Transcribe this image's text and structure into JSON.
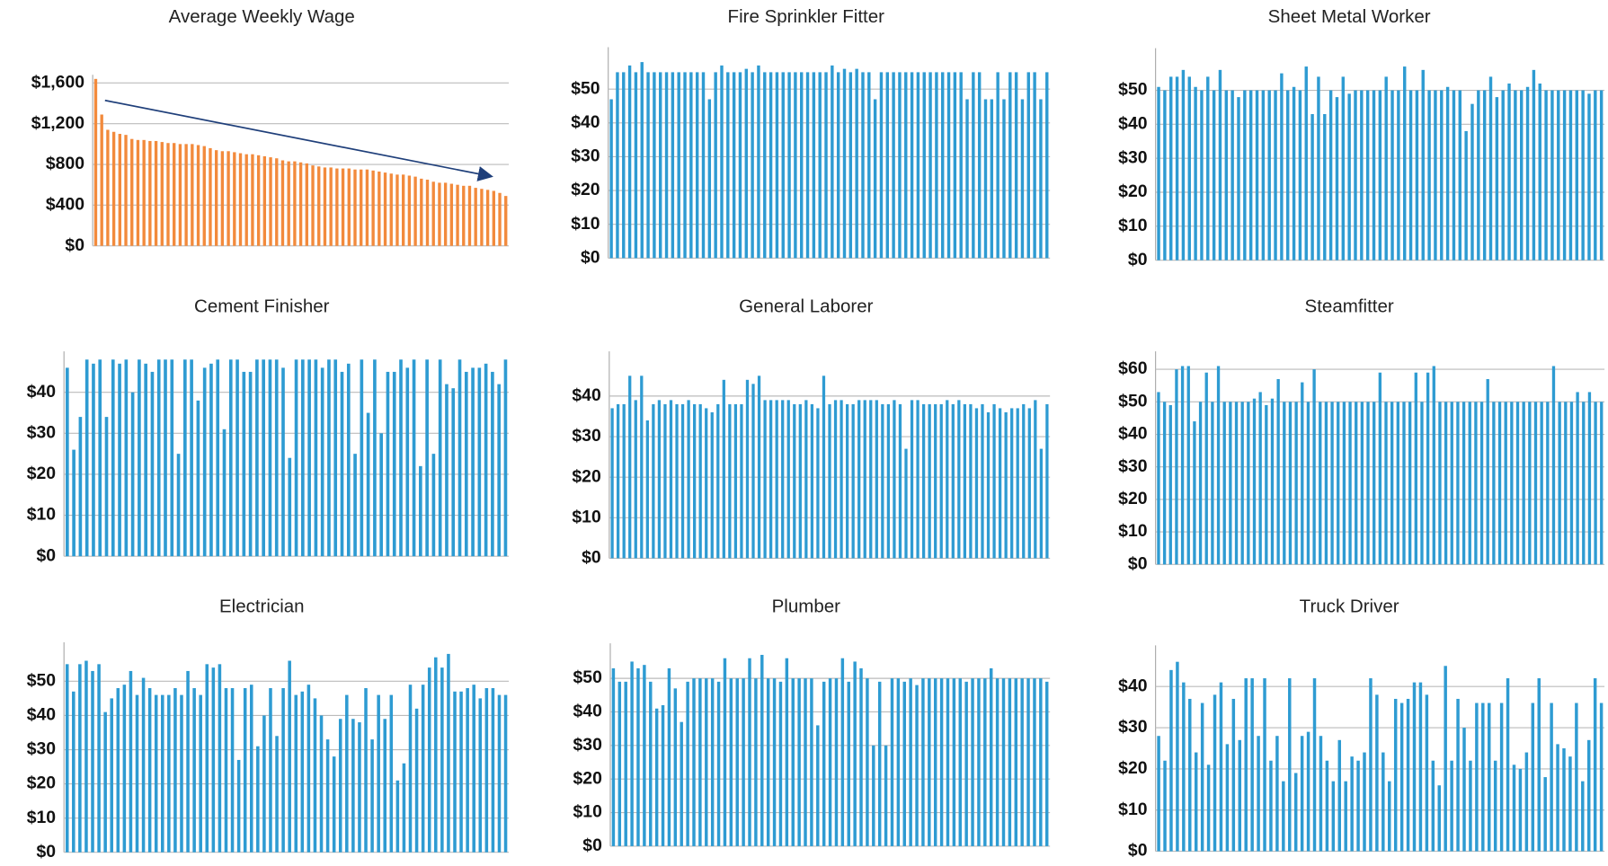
{
  "chart_data": [
    {
      "type": "bar",
      "title": "Average Weekly Wage",
      "color": "#f28a3c",
      "ylim": [
        0,
        1600
      ],
      "yticks": [
        {
          "value": 0,
          "label": "$0"
        },
        {
          "value": 400,
          "label": "$400"
        },
        {
          "value": 800,
          "label": "$800"
        },
        {
          "value": 1200,
          "label": "$1,200"
        },
        {
          "value": 1600,
          "label": "$1,600"
        }
      ],
      "values": [
        1640,
        1290,
        1140,
        1120,
        1100,
        1090,
        1050,
        1040,
        1040,
        1030,
        1030,
        1020,
        1010,
        1010,
        1000,
        1000,
        1000,
        990,
        980,
        960,
        940,
        930,
        930,
        920,
        910,
        900,
        900,
        890,
        880,
        870,
        860,
        840,
        830,
        830,
        820,
        810,
        790,
        780,
        770,
        770,
        760,
        760,
        760,
        750,
        750,
        750,
        740,
        730,
        720,
        710,
        700,
        700,
        690,
        680,
        660,
        650,
        630,
        620,
        620,
        610,
        600,
        590,
        590,
        570,
        560,
        550,
        540,
        520,
        490
      ]
    },
    {
      "type": "bar",
      "title": "Fire Sprinkler Fitter",
      "color": "#2e9bd2",
      "ylim": [
        0,
        60
      ],
      "yticks": [
        {
          "value": 0,
          "label": "$0"
        },
        {
          "value": 10,
          "label": "$10"
        },
        {
          "value": 20,
          "label": "$20"
        },
        {
          "value": 30,
          "label": "$30"
        },
        {
          "value": 40,
          "label": "$40"
        },
        {
          "value": 50,
          "label": "$50"
        }
      ],
      "values": [
        47,
        55,
        55,
        57,
        55,
        58,
        55,
        55,
        55,
        55,
        55,
        55,
        55,
        55,
        55,
        55,
        47,
        55,
        57,
        55,
        55,
        55,
        56,
        55,
        57,
        55,
        55,
        55,
        55,
        55,
        55,
        55,
        55,
        55,
        55,
        55,
        57,
        55,
        56,
        55,
        56,
        55,
        55,
        47,
        55,
        55,
        55,
        55,
        55,
        55,
        55,
        55,
        55,
        55,
        55,
        55,
        55,
        55,
        47,
        55,
        55,
        47,
        47,
        55,
        47,
        55,
        55,
        47,
        55,
        55,
        47,
        55
      ]
    },
    {
      "type": "bar",
      "title": "Sheet Metal Worker",
      "color": "#2e9bd2",
      "ylim": [
        0,
        60
      ],
      "yticks": [
        {
          "value": 0,
          "label": "$0"
        },
        {
          "value": 10,
          "label": "$10"
        },
        {
          "value": 20,
          "label": "$20"
        },
        {
          "value": 30,
          "label": "$30"
        },
        {
          "value": 40,
          "label": "$40"
        },
        {
          "value": 50,
          "label": "$50"
        }
      ],
      "values": [
        51,
        50,
        54,
        54,
        56,
        54,
        51,
        50,
        54,
        50,
        56,
        50,
        50,
        48,
        50,
        50,
        50,
        50,
        50,
        50,
        55,
        50,
        51,
        50,
        57,
        43,
        54,
        43,
        50,
        48,
        54,
        49,
        50,
        50,
        50,
        50,
        50,
        54,
        50,
        50,
        57,
        50,
        50,
        56,
        50,
        50,
        50,
        51,
        50,
        50,
        38,
        46,
        50,
        50,
        54,
        48,
        50,
        52,
        50,
        50,
        51,
        56,
        52,
        50,
        50,
        50,
        50,
        50,
        50,
        50,
        49,
        50,
        50
      ]
    },
    {
      "type": "bar",
      "title": "Cement Finisher",
      "color": "#2e9bd2",
      "ylim": [
        0,
        48
      ],
      "yticks": [
        {
          "value": 0,
          "label": "$0"
        },
        {
          "value": 10,
          "label": "$10"
        },
        {
          "value": 20,
          "label": "$20"
        },
        {
          "value": 30,
          "label": "$30"
        },
        {
          "value": 40,
          "label": "$40"
        }
      ],
      "values": [
        46,
        26,
        34,
        48,
        47,
        48,
        34,
        48,
        47,
        48,
        40,
        48,
        47,
        45,
        48,
        48,
        48,
        25,
        48,
        48,
        38,
        46,
        47,
        48,
        31,
        48,
        48,
        45,
        45,
        48,
        48,
        48,
        48,
        46,
        24,
        48,
        48,
        48,
        48,
        46,
        48,
        48,
        45,
        47,
        25,
        48,
        35,
        48,
        30,
        45,
        45,
        48,
        46,
        48,
        22,
        48,
        25,
        48,
        42,
        41,
        48,
        45,
        46,
        46,
        47,
        45,
        42,
        48
      ]
    },
    {
      "type": "bar",
      "title": "General Laborer",
      "color": "#2e9bd2",
      "ylim": [
        0,
        49
      ],
      "yticks": [
        {
          "value": 0,
          "label": "$0"
        },
        {
          "value": 10,
          "label": "$10"
        },
        {
          "value": 20,
          "label": "$20"
        },
        {
          "value": 30,
          "label": "$30"
        },
        {
          "value": 40,
          "label": "$40"
        }
      ],
      "values": [
        37,
        38,
        38,
        45,
        39,
        45,
        34,
        38,
        39,
        38,
        39,
        38,
        38,
        39,
        38,
        38,
        37,
        36,
        38,
        44,
        38,
        38,
        38,
        44,
        43,
        45,
        39,
        39,
        39,
        39,
        39,
        38,
        38,
        39,
        38,
        37,
        45,
        38,
        39,
        39,
        38,
        38,
        39,
        39,
        39,
        39,
        38,
        38,
        39,
        38,
        27,
        39,
        39,
        38,
        38,
        38,
        38,
        39,
        38,
        39,
        38,
        38,
        37,
        38,
        36,
        38,
        37,
        36,
        37,
        37,
        38,
        37,
        39,
        27,
        38
      ]
    },
    {
      "type": "bar",
      "title": "Steamfitter",
      "color": "#2e9bd2",
      "ylim": [
        0,
        63
      ],
      "yticks": [
        {
          "value": 0,
          "label": "$0"
        },
        {
          "value": 10,
          "label": "$10"
        },
        {
          "value": 20,
          "label": "$20"
        },
        {
          "value": 30,
          "label": "$30"
        },
        {
          "value": 40,
          "label": "$40"
        },
        {
          "value": 50,
          "label": "$50"
        },
        {
          "value": 60,
          "label": "$60"
        }
      ],
      "values": [
        53,
        50,
        49,
        60,
        61,
        61,
        44,
        50,
        59,
        50,
        61,
        50,
        50,
        50,
        50,
        50,
        51,
        53,
        49,
        51,
        57,
        50,
        50,
        50,
        56,
        50,
        60,
        50,
        50,
        50,
        50,
        50,
        50,
        50,
        50,
        50,
        50,
        59,
        50,
        50,
        50,
        50,
        50,
        59,
        50,
        59,
        61,
        50,
        50,
        50,
        50,
        50,
        50,
        50,
        50,
        57,
        50,
        50,
        50,
        50,
        50,
        50,
        50,
        50,
        50,
        50,
        61,
        50,
        50,
        50,
        53,
        50,
        53,
        50,
        50
      ]
    },
    {
      "type": "bar",
      "title": "Electrician",
      "color": "#2e9bd2",
      "ylim": [
        0,
        59
      ],
      "yticks": [
        {
          "value": 0,
          "label": "$0"
        },
        {
          "value": 10,
          "label": "$10"
        },
        {
          "value": 20,
          "label": "$20"
        },
        {
          "value": 30,
          "label": "$30"
        },
        {
          "value": 40,
          "label": "$40"
        },
        {
          "value": 50,
          "label": "$50"
        }
      ],
      "values": [
        55,
        47,
        55,
        56,
        53,
        55,
        41,
        45,
        48,
        49,
        53,
        46,
        51,
        48,
        46,
        46,
        46,
        48,
        46,
        53,
        48,
        46,
        55,
        54,
        55,
        48,
        48,
        27,
        48,
        49,
        31,
        40,
        48,
        34,
        48,
        56,
        46,
        47,
        49,
        45,
        40,
        33,
        28,
        39,
        46,
        39,
        38,
        48,
        33,
        46,
        39,
        46,
        21,
        26,
        49,
        42,
        49,
        54,
        57,
        54,
        58,
        47,
        47,
        48,
        49,
        45,
        48,
        48,
        46,
        46
      ]
    },
    {
      "type": "bar",
      "title": "Plumber",
      "color": "#2e9bd2",
      "ylim": [
        0,
        58
      ],
      "yticks": [
        {
          "value": 0,
          "label": "$0"
        },
        {
          "value": 10,
          "label": "$10"
        },
        {
          "value": 20,
          "label": "$20"
        },
        {
          "value": 30,
          "label": "$30"
        },
        {
          "value": 40,
          "label": "$40"
        },
        {
          "value": 50,
          "label": "$50"
        }
      ],
      "values": [
        53,
        49,
        49,
        55,
        53,
        54,
        49,
        41,
        42,
        53,
        47,
        37,
        49,
        50,
        50,
        50,
        50,
        49,
        56,
        50,
        50,
        50,
        56,
        50,
        57,
        50,
        50,
        49,
        56,
        50,
        50,
        50,
        50,
        36,
        49,
        50,
        50,
        56,
        49,
        55,
        53,
        50,
        30,
        49,
        30,
        50,
        50,
        49,
        50,
        48,
        50,
        50,
        50,
        50,
        50,
        50,
        50,
        49,
        50,
        50,
        50,
        53,
        50,
        50,
        50,
        50,
        50,
        50,
        50,
        50,
        49
      ]
    },
    {
      "type": "bar",
      "title": "Truck Driver",
      "color": "#2e9bd2",
      "ylim": [
        0,
        48
      ],
      "yticks": [
        {
          "value": 0,
          "label": "$0"
        },
        {
          "value": 10,
          "label": "$10"
        },
        {
          "value": 20,
          "label": "$20"
        },
        {
          "value": 30,
          "label": "$30"
        },
        {
          "value": 40,
          "label": "$40"
        }
      ],
      "values": [
        28,
        22,
        44,
        46,
        41,
        37,
        24,
        36,
        21,
        38,
        41,
        26,
        37,
        27,
        42,
        42,
        28,
        42,
        22,
        28,
        17,
        42,
        19,
        28,
        29,
        42,
        28,
        22,
        17,
        27,
        17,
        23,
        22,
        24,
        42,
        38,
        24,
        17,
        37,
        36,
        37,
        41,
        41,
        38,
        22,
        16,
        45,
        22,
        37,
        30,
        22,
        36,
        36,
        36,
        22,
        36,
        42,
        21,
        20,
        24,
        36,
        42,
        18,
        36,
        26,
        25,
        23,
        36,
        17,
        27,
        42,
        36
      ]
    }
  ]
}
